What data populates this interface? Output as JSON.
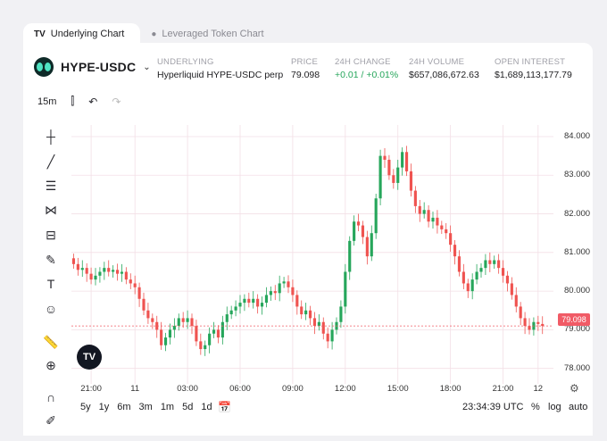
{
  "tabs": [
    {
      "label": "Underlying Chart",
      "icon": "tradingview-icon",
      "active": true
    },
    {
      "label": "Leveraged Token Chart",
      "icon": "token-icon",
      "active": false
    }
  ],
  "symbol": {
    "name": "HYPE-USDC"
  },
  "stats": [
    {
      "label": "UNDERLYING",
      "value": "Hyperliquid HYPE-USDC perp"
    },
    {
      "label": "PRICE",
      "value": "79.098"
    },
    {
      "label": "24H CHANGE",
      "value": "+0.01 / +0.01%"
    },
    {
      "label": "24H VOLUME",
      "value": "$657,086,672.63"
    },
    {
      "label": "OPEN INTEREST",
      "value": "$1,689,113,177.79"
    }
  ],
  "toolbar": {
    "interval": "15m"
  },
  "chart_data": {
    "type": "candlestick",
    "y_ticks": [
      "84.000",
      "83.000",
      "82.000",
      "81.000",
      "80.000",
      "79.000",
      "78.000"
    ],
    "x_ticks": [
      "21:00",
      "11",
      "03:00",
      "06:00",
      "09:00",
      "12:00",
      "15:00",
      "18:00",
      "21:00",
      "12"
    ],
    "ylim": [
      77.6,
      84.3
    ],
    "last_price": "79.098",
    "up_color": "#26a65b",
    "down_color": "#ef5350",
    "close": [
      80.7,
      80.55,
      80.6,
      80.45,
      80.3,
      80.4,
      80.5,
      80.6,
      80.5,
      80.55,
      80.45,
      80.5,
      80.3,
      80.2,
      80.1,
      79.8,
      79.5,
      79.3,
      79.2,
      79.0,
      78.6,
      78.8,
      79.0,
      79.1,
      79.3,
      79.2,
      79.3,
      79.1,
      78.7,
      78.5,
      78.6,
      78.9,
      79.0,
      78.8,
      79.2,
      79.4,
      79.5,
      79.6,
      79.7,
      79.8,
      79.7,
      79.8,
      79.6,
      79.7,
      79.9,
      80.0,
      79.95,
      80.2,
      80.25,
      80.1,
      79.9,
      79.6,
      79.4,
      79.5,
      79.3,
      79.1,
      79.2,
      78.9,
      78.7,
      79.0,
      79.2,
      79.6,
      80.5,
      81.3,
      81.8,
      81.7,
      81.4,
      80.9,
      81.5,
      82.4,
      83.5,
      83.4,
      83.0,
      82.8,
      83.2,
      83.6,
      83.1,
      82.6,
      82.2,
      82.0,
      82.1,
      81.8,
      81.9,
      81.7,
      81.6,
      81.5,
      81.2,
      80.9,
      80.5,
      80.2,
      80.0,
      80.3,
      80.5,
      80.6,
      80.8,
      80.7,
      80.8,
      80.6,
      80.4,
      80.2,
      79.9,
      79.6,
      79.3,
      79.1,
      79.0,
      79.2,
      79.15,
      79.1
    ]
  },
  "timeframes": [
    "5y",
    "1y",
    "6m",
    "3m",
    "1m",
    "5d",
    "1d"
  ],
  "footer": {
    "time": "23:34:39 UTC",
    "percent": "%",
    "log": "log",
    "auto": "auto"
  }
}
